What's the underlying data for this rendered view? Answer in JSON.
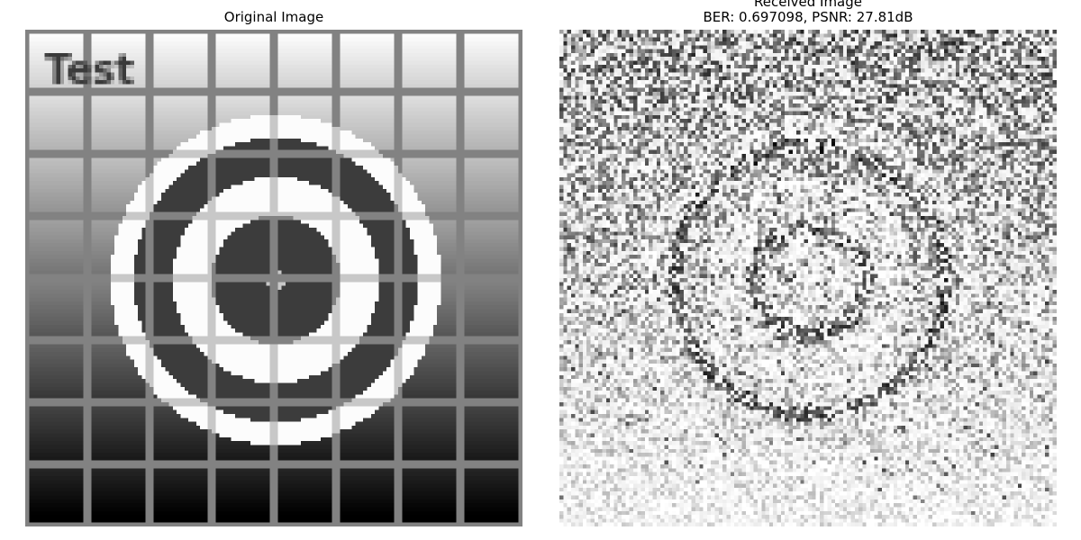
{
  "figure": {
    "left_panel": {
      "title": "Original Image",
      "image_description_text": "Test"
    },
    "right_panel": {
      "title_line1": "Received Image",
      "title_line2": "BER: 0.697098, PSNR: 27.81dB"
    }
  }
}
